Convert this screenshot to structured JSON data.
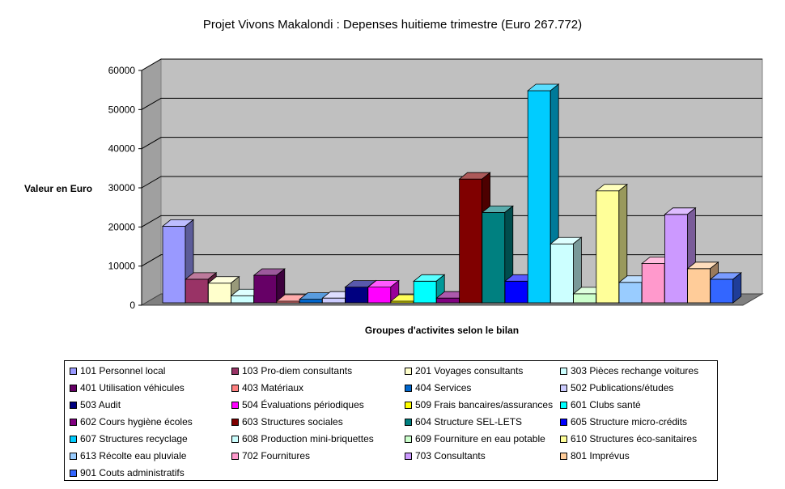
{
  "chart_data": {
    "type": "bar",
    "title": "Projet Vivons Makalondi : Depenses huitieme trimestre (Euro 267.772)",
    "ylabel": "Valeur en Euro",
    "xlabel": "Groupes d'activites selon le bilan",
    "ylim": [
      0,
      60000
    ],
    "yticks": [
      "0",
      "10000",
      "20000",
      "30000",
      "40000",
      "50000",
      "60000"
    ],
    "grid": true,
    "legend_position": "bottom",
    "categories": [
      "101 Personnel local",
      "103 Pro-diem consultants",
      "201 Voyages consultants",
      "303 Pièces rechange voitures",
      "401 Utilisation véhicules",
      "403 Matériaux",
      "404 Services",
      "502 Publications/études",
      "503 Audit",
      "504 Évaluations périodiques",
      "509 Frais bancaires/assurances",
      "601 Clubs santé",
      "602 Cours hygiène écoles",
      "603 Structures sociales",
      "604 Structure SEL-LETS",
      "605 Structure micro-crédits",
      "607 Structures recyclage",
      "608 Production mini-briquettes",
      "609 Fourniture en eau potable",
      "610 Structures éco-sanitaires",
      "613 Récolte eau pluviale",
      "702 Fournitures",
      "703 Consultants",
      "801 Imprévus",
      "901 Couts administratifs"
    ],
    "values": [
      19500,
      6000,
      5000,
      1800,
      7000,
      200,
      900,
      1200,
      4000,
      4000,
      400,
      5500,
      1200,
      31500,
      23000,
      5500,
      54000,
      15000,
      2300,
      28500,
      5200,
      10000,
      22500,
      8700,
      6000
    ],
    "colors": [
      "#9999ff",
      "#993366",
      "#ffffcc",
      "#ccffff",
      "#660066",
      "#ff8080",
      "#0066cc",
      "#ccccff",
      "#000080",
      "#ff00ff",
      "#ffff00",
      "#00ffff",
      "#800080",
      "#800000",
      "#008080",
      "#0000ff",
      "#00ccff",
      "#ccffff",
      "#ccffcc",
      "#ffff99",
      "#99ccff",
      "#ff99cc",
      "#cc99ff",
      "#ffcc99",
      "#3366ff"
    ]
  }
}
